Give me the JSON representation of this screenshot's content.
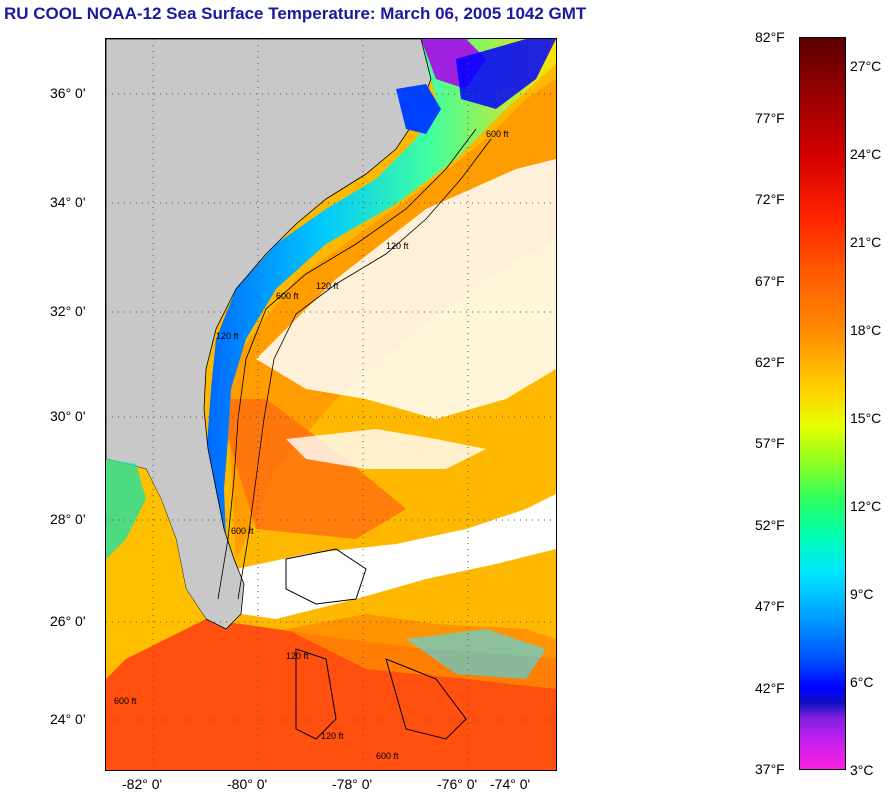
{
  "title": "RU COOL  NOAA-12  Sea Surface Temperature:  March 06, 2005 1042 GMT",
  "lat_labels": [
    "36° 0'",
    "34° 0'",
    "32° 0'",
    "30° 0'",
    "28° 0'",
    "26° 0'",
    "24° 0'"
  ],
  "lon_labels": [
    "-82° 0'",
    "-80° 0'",
    "-78° 0'",
    "-76° 0'",
    "-74° 0'"
  ],
  "colorbar": {
    "fahrenheit": [
      "82°F",
      "77°F",
      "72°F",
      "67°F",
      "62°F",
      "57°F",
      "52°F",
      "47°F",
      "42°F",
      "37°F"
    ],
    "celsius": [
      "27°C",
      "24°C",
      "21°C",
      "18°C",
      "15°C",
      "12°C",
      "9°C",
      "6°C",
      "3°C"
    ]
  },
  "contour_labels": [
    "600 ft",
    "120 ft",
    "120 ft",
    "600 ft",
    "120 ft",
    "600 ft",
    "600 ft",
    "120 ft",
    "120 ft",
    "600 ft"
  ],
  "colors": {
    "land": "#c8c8c8",
    "cloud": "#ffffff",
    "title": "#1a1aa0"
  }
}
